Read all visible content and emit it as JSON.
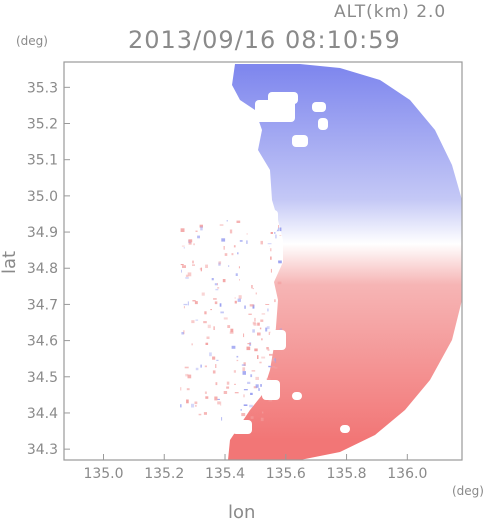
{
  "header": {
    "altitude": "ALT(km) 2.0",
    "datetime": "2013/09/16 08:10:59"
  },
  "axes": {
    "x_label": "lon",
    "y_label": "lat",
    "x_unit": "(deg)",
    "y_unit": "(deg)",
    "x_ticks": [
      "135.0",
      "135.2",
      "135.4",
      "135.6",
      "135.8",
      "136.0"
    ],
    "y_ticks": [
      "35.3",
      "35.2",
      "35.1",
      "35.0",
      "34.9",
      "34.8",
      "34.7",
      "34.6",
      "34.5",
      "34.4",
      "34.3"
    ],
    "x_range": [
      134.87,
      136.18
    ],
    "y_range": [
      34.27,
      35.37
    ]
  },
  "radar": {
    "center_lon": 135.55,
    "center_lat": 34.82,
    "colors": {
      "approaching": "#7f86ee",
      "receding": "#f27a7a",
      "zero": "#ffffff",
      "axis": "#9a9a9a"
    }
  }
}
